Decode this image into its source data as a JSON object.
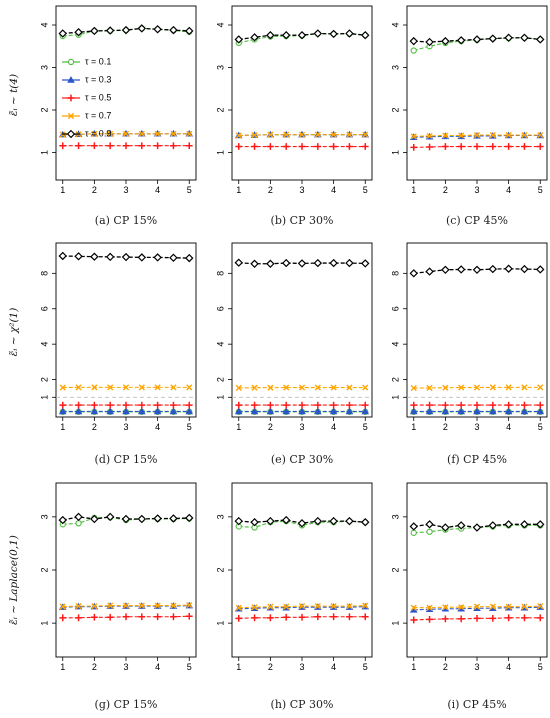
{
  "figure": {
    "type": "line",
    "x_ticks": [
      1,
      2,
      3,
      4,
      5
    ],
    "legend": {
      "location": "panel-a-left",
      "entries": [
        {
          "label": "τ = 0.1",
          "color": "#4fbd3f",
          "marker": "circle"
        },
        {
          "label": "τ = 0.3",
          "color": "#2c55c8",
          "marker": "triangle"
        },
        {
          "label": "τ = 0.5",
          "color": "#ff1a1a",
          "marker": "plus"
        },
        {
          "label": "τ = 0.7",
          "color": "#ffa500",
          "marker": "cross"
        },
        {
          "label": "τ = 0.9",
          "color": "#000000",
          "marker": "diamond"
        }
      ]
    },
    "rows": [
      {
        "label": "ε̃ᵢ ∼ t(4)",
        "y_ticks": [
          1,
          2,
          3,
          4
        ],
        "ylim": [
          0.4,
          4.4
        ]
      },
      {
        "label": "ε̃ᵢ ∼ χ²(1)",
        "y_ticks": [
          1,
          2,
          4,
          6,
          8
        ],
        "ylim": [
          0,
          9.6
        ]
      },
      {
        "label": "ε̃ᵢ ∼ Laplace(0,1)",
        "y_ticks": [
          1,
          2,
          3
        ],
        "ylim": [
          0.4,
          3.6
        ]
      }
    ]
  },
  "chart_data": [
    {
      "type": "line",
      "caption": "(a)   CP 15%",
      "x": [
        1,
        1.5,
        2,
        2.5,
        3,
        3.5,
        4,
        4.5,
        5
      ],
      "ylim": [
        0.4,
        4.4
      ],
      "grid": false,
      "series": [
        {
          "name": "τ = 0.1",
          "values": [
            3.74,
            3.77,
            3.86,
            3.86,
            3.88,
            3.92,
            3.9,
            3.87,
            3.84
          ]
        },
        {
          "name": "τ = 0.3",
          "values": [
            1.42,
            1.43,
            1.44,
            1.44,
            1.44,
            1.44,
            1.44,
            1.44,
            1.44
          ]
        },
        {
          "name": "τ = 0.5",
          "values": [
            1.16,
            1.16,
            1.16,
            1.16,
            1.16,
            1.16,
            1.16,
            1.16,
            1.16
          ]
        },
        {
          "name": "τ = 0.7",
          "values": [
            1.42,
            1.43,
            1.44,
            1.44,
            1.44,
            1.44,
            1.44,
            1.44,
            1.44
          ]
        },
        {
          "name": "τ = 0.9",
          "values": [
            3.8,
            3.83,
            3.86,
            3.87,
            3.88,
            3.92,
            3.9,
            3.88,
            3.86
          ]
        }
      ]
    },
    {
      "type": "line",
      "caption": "(b)   CP 30%",
      "x": [
        1,
        1.5,
        2,
        2.5,
        3,
        3.5,
        4,
        4.5,
        5
      ],
      "ylim": [
        0.4,
        4.4
      ],
      "grid": false,
      "series": [
        {
          "name": "τ = 0.1",
          "values": [
            3.58,
            3.66,
            3.73,
            3.74,
            3.75,
            3.8,
            3.79,
            3.79,
            3.76
          ]
        },
        {
          "name": "τ = 0.3",
          "values": [
            1.4,
            1.41,
            1.42,
            1.42,
            1.42,
            1.42,
            1.42,
            1.42,
            1.42
          ]
        },
        {
          "name": "τ = 0.5",
          "values": [
            1.14,
            1.14,
            1.14,
            1.14,
            1.14,
            1.14,
            1.14,
            1.14,
            1.14
          ]
        },
        {
          "name": "τ = 0.7",
          "values": [
            1.4,
            1.41,
            1.42,
            1.42,
            1.42,
            1.42,
            1.42,
            1.42,
            1.42
          ]
        },
        {
          "name": "τ = 0.9",
          "values": [
            3.66,
            3.71,
            3.76,
            3.76,
            3.76,
            3.8,
            3.79,
            3.8,
            3.76
          ]
        }
      ]
    },
    {
      "type": "line",
      "caption": "(c)   CP 45%",
      "x": [
        1,
        1.5,
        2,
        2.5,
        3,
        3.5,
        4,
        4.5,
        5
      ],
      "ylim": [
        0.4,
        4.4
      ],
      "grid": false,
      "series": [
        {
          "name": "τ = 0.1",
          "values": [
            3.4,
            3.5,
            3.58,
            3.62,
            3.65,
            3.68,
            3.69,
            3.7,
            3.66
          ]
        },
        {
          "name": "τ = 0.3",
          "values": [
            1.36,
            1.37,
            1.38,
            1.38,
            1.39,
            1.39,
            1.4,
            1.4,
            1.4
          ]
        },
        {
          "name": "τ = 0.5",
          "values": [
            1.12,
            1.13,
            1.14,
            1.14,
            1.14,
            1.14,
            1.14,
            1.14,
            1.14
          ]
        },
        {
          "name": "τ = 0.7",
          "values": [
            1.38,
            1.39,
            1.4,
            1.4,
            1.41,
            1.41,
            1.41,
            1.41,
            1.41
          ]
        },
        {
          "name": "τ = 0.9",
          "values": [
            3.62,
            3.6,
            3.62,
            3.64,
            3.66,
            3.68,
            3.7,
            3.7,
            3.66
          ]
        }
      ]
    },
    {
      "type": "line",
      "caption": "(d)   CP 15%",
      "x": [
        1,
        1.5,
        2,
        2.5,
        3,
        3.5,
        4,
        4.5,
        5
      ],
      "ylim": [
        0,
        9.6
      ],
      "grid": false,
      "series": [
        {
          "name": "τ = 0.1",
          "values": [
            0.18,
            0.18,
            0.18,
            0.18,
            0.18,
            0.18,
            0.18,
            0.18,
            0.18
          ]
        },
        {
          "name": "τ = 0.3",
          "values": [
            0.2,
            0.2,
            0.2,
            0.2,
            0.2,
            0.2,
            0.2,
            0.2,
            0.2
          ]
        },
        {
          "name": "τ = 0.5",
          "values": [
            0.56,
            0.56,
            0.56,
            0.56,
            0.56,
            0.56,
            0.56,
            0.56,
            0.56
          ]
        },
        {
          "name": "τ = 0.7",
          "values": [
            1.55,
            1.56,
            1.56,
            1.56,
            1.56,
            1.56,
            1.56,
            1.56,
            1.56
          ]
        },
        {
          "name": "τ = 0.9",
          "values": [
            8.98,
            8.96,
            8.94,
            8.93,
            8.92,
            8.9,
            8.9,
            8.88,
            8.86
          ]
        }
      ]
    },
    {
      "type": "line",
      "caption": "(e)   CP 30%",
      "x": [
        1,
        1.5,
        2,
        2.5,
        3,
        3.5,
        4,
        4.5,
        5
      ],
      "ylim": [
        0,
        9.6
      ],
      "grid": false,
      "series": [
        {
          "name": "τ = 0.1",
          "values": [
            0.18,
            0.18,
            0.18,
            0.18,
            0.18,
            0.18,
            0.18,
            0.18,
            0.18
          ]
        },
        {
          "name": "τ = 0.3",
          "values": [
            0.2,
            0.2,
            0.2,
            0.2,
            0.2,
            0.2,
            0.2,
            0.2,
            0.2
          ]
        },
        {
          "name": "τ = 0.5",
          "values": [
            0.56,
            0.56,
            0.56,
            0.56,
            0.56,
            0.56,
            0.56,
            0.56,
            0.56
          ]
        },
        {
          "name": "τ = 0.7",
          "values": [
            1.53,
            1.54,
            1.54,
            1.55,
            1.55,
            1.55,
            1.55,
            1.55,
            1.55
          ]
        },
        {
          "name": "τ = 0.9",
          "values": [
            8.6,
            8.54,
            8.54,
            8.58,
            8.56,
            8.58,
            8.58,
            8.58,
            8.56
          ]
        }
      ]
    },
    {
      "type": "line",
      "caption": "(f)   CP 45%",
      "x": [
        1,
        1.5,
        2,
        2.5,
        3,
        3.5,
        4,
        4.5,
        5
      ],
      "ylim": [
        0,
        9.6
      ],
      "grid": false,
      "series": [
        {
          "name": "τ = 0.1",
          "values": [
            0.18,
            0.18,
            0.18,
            0.18,
            0.18,
            0.18,
            0.18,
            0.18,
            0.18
          ]
        },
        {
          "name": "τ = 0.3",
          "values": [
            0.2,
            0.2,
            0.2,
            0.2,
            0.2,
            0.2,
            0.2,
            0.2,
            0.2
          ]
        },
        {
          "name": "τ = 0.5",
          "values": [
            0.56,
            0.56,
            0.56,
            0.56,
            0.56,
            0.56,
            0.56,
            0.56,
            0.56
          ]
        },
        {
          "name": "τ = 0.7",
          "values": [
            1.52,
            1.53,
            1.54,
            1.55,
            1.55,
            1.56,
            1.56,
            1.56,
            1.56
          ]
        },
        {
          "name": "τ = 0.9",
          "values": [
            8.0,
            8.1,
            8.2,
            8.22,
            8.2,
            8.24,
            8.26,
            8.24,
            8.22
          ]
        }
      ]
    },
    {
      "type": "line",
      "caption": "(g)   CP 15%",
      "x": [
        1,
        1.5,
        2,
        2.5,
        3,
        3.5,
        4,
        4.5,
        5
      ],
      "ylim": [
        0.4,
        3.6
      ],
      "grid": false,
      "series": [
        {
          "name": "τ = 0.1",
          "values": [
            2.86,
            2.88,
            2.98,
            2.99,
            2.94,
            2.96,
            2.96,
            2.96,
            2.97
          ]
        },
        {
          "name": "τ = 0.3",
          "values": [
            1.3,
            1.31,
            1.31,
            1.32,
            1.32,
            1.32,
            1.32,
            1.32,
            1.33
          ]
        },
        {
          "name": "τ = 0.5",
          "values": [
            1.1,
            1.1,
            1.11,
            1.11,
            1.12,
            1.12,
            1.12,
            1.12,
            1.13
          ]
        },
        {
          "name": "τ = 0.7",
          "values": [
            1.31,
            1.32,
            1.32,
            1.33,
            1.33,
            1.33,
            1.33,
            1.33,
            1.34
          ]
        },
        {
          "name": "τ = 0.9",
          "values": [
            2.94,
            3.0,
            2.96,
            3.0,
            2.96,
            2.96,
            2.97,
            2.97,
            2.98
          ]
        }
      ]
    },
    {
      "type": "line",
      "caption": "(h)   CP 30%",
      "x": [
        1,
        1.5,
        2,
        2.5,
        3,
        3.5,
        4,
        4.5,
        5
      ],
      "ylim": [
        0.4,
        3.6
      ],
      "grid": false,
      "series": [
        {
          "name": "τ = 0.1",
          "values": [
            2.82,
            2.8,
            2.9,
            2.92,
            2.84,
            2.9,
            2.9,
            2.92,
            2.9
          ]
        },
        {
          "name": "τ = 0.3",
          "values": [
            1.27,
            1.28,
            1.29,
            1.29,
            1.3,
            1.3,
            1.3,
            1.3,
            1.31
          ]
        },
        {
          "name": "τ = 0.5",
          "values": [
            1.09,
            1.1,
            1.1,
            1.11,
            1.11,
            1.12,
            1.12,
            1.12,
            1.12
          ]
        },
        {
          "name": "τ = 0.7",
          "values": [
            1.29,
            1.3,
            1.31,
            1.31,
            1.32,
            1.32,
            1.32,
            1.32,
            1.33
          ]
        },
        {
          "name": "τ = 0.9",
          "values": [
            2.92,
            2.9,
            2.92,
            2.94,
            2.88,
            2.92,
            2.92,
            2.92,
            2.9
          ]
        }
      ]
    },
    {
      "type": "line",
      "caption": "(i)   CP 45%",
      "x": [
        1,
        1.5,
        2,
        2.5,
        3,
        3.5,
        4,
        4.5,
        5
      ],
      "ylim": [
        0.4,
        3.6
      ],
      "grid": false,
      "series": [
        {
          "name": "τ = 0.1",
          "values": [
            2.7,
            2.72,
            2.76,
            2.78,
            2.8,
            2.82,
            2.84,
            2.84,
            2.84
          ]
        },
        {
          "name": "τ = 0.3",
          "values": [
            1.25,
            1.26,
            1.27,
            1.27,
            1.28,
            1.28,
            1.29,
            1.29,
            1.3
          ]
        },
        {
          "name": "τ = 0.5",
          "values": [
            1.06,
            1.07,
            1.08,
            1.08,
            1.09,
            1.09,
            1.1,
            1.1,
            1.1
          ]
        },
        {
          "name": "τ = 0.7",
          "values": [
            1.29,
            1.29,
            1.3,
            1.3,
            1.31,
            1.31,
            1.31,
            1.31,
            1.32
          ]
        },
        {
          "name": "τ = 0.9",
          "values": [
            2.82,
            2.86,
            2.8,
            2.84,
            2.8,
            2.84,
            2.86,
            2.86,
            2.86
          ]
        }
      ]
    }
  ]
}
